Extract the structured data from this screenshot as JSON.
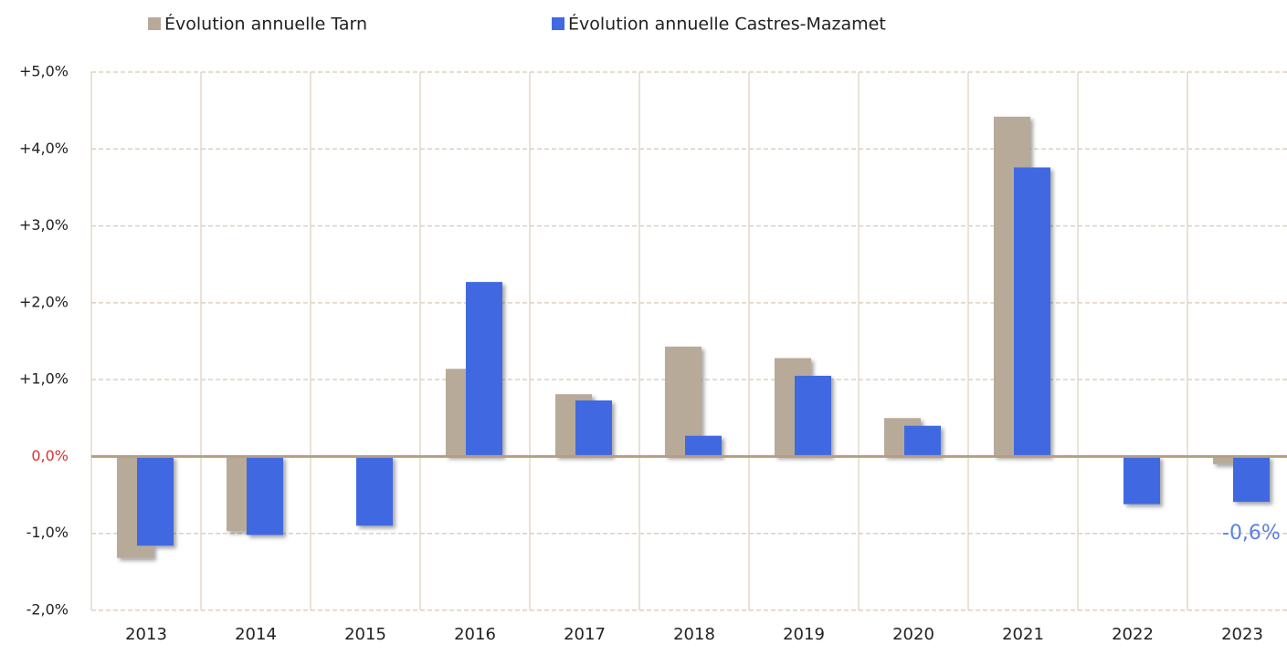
{
  "chart_data": {
    "type": "bar",
    "categories": [
      "2013",
      "2014",
      "2015",
      "2016",
      "2017",
      "2018",
      "2019",
      "2020",
      "2021",
      "2022",
      "2023"
    ],
    "series": [
      {
        "name": "Évolution annuelle Tarn",
        "color": "#b8aa99",
        "values": [
          -1.32,
          -0.97,
          0,
          1.14,
          0.81,
          1.43,
          1.28,
          0.5,
          4.42,
          0,
          -0.1
        ]
      },
      {
        "name": "Évolution annuelle Castres-Mazamet",
        "color": "#4169e1",
        "values": [
          -1.16,
          -1.02,
          -0.9,
          2.27,
          0.73,
          0.27,
          1.05,
          0.4,
          3.76,
          -0.62,
          -0.59
        ],
        "value_labels": [
          null,
          null,
          null,
          null,
          null,
          null,
          null,
          null,
          null,
          null,
          "-0,6%"
        ]
      }
    ],
    "ylim": [
      -2,
      5
    ],
    "yticks": [
      {
        "value": -2,
        "label": "-2,0%"
      },
      {
        "value": -1,
        "label": "-1,0%"
      },
      {
        "value": 0,
        "label": "0,0%"
      },
      {
        "value": 1,
        "label": "+1,0%"
      },
      {
        "value": 2,
        "label": "+2,0%"
      },
      {
        "value": 3,
        "label": "+3,0%"
      },
      {
        "value": 4,
        "label": "+4,0%"
      },
      {
        "value": 5,
        "label": "+5,0%"
      }
    ],
    "grid": true,
    "legend": "top"
  }
}
